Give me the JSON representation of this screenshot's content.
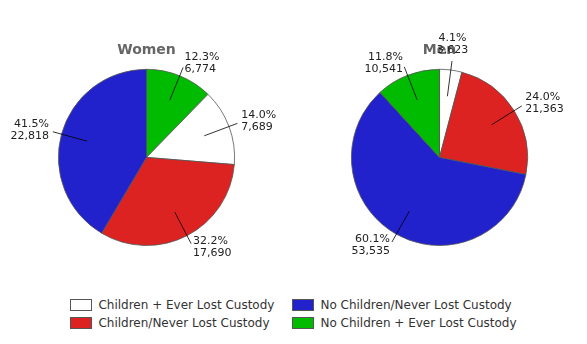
{
  "chart_data": [
    {
      "type": "pie",
      "title": "Women",
      "categories": [
        "No Children + Ever Lost Custody",
        "Children + Ever Lost Custody",
        "Children/Never Lost Custody",
        "No Children/Never Lost Custody"
      ],
      "values": [
        12.3,
        14.0,
        32.2,
        41.5
      ],
      "value_labels": [
        "12.3%\n6,774",
        "14.0%\n7,689",
        "32.2%\n17,690",
        "41.5%\n22,818"
      ],
      "colors": [
        "#00bb00",
        "#ffffff",
        "#dd2222",
        "#2222cc"
      ],
      "data_labels": true
    },
    {
      "type": "pie",
      "title": "Men",
      "categories": [
        "Children + Ever Lost Custody",
        "Children/Never Lost Custody",
        "No Children/Never Lost Custody",
        "No Children + Ever Lost Custody"
      ],
      "values": [
        4.1,
        24.0,
        60.1,
        11.8
      ],
      "value_labels": [
        "4.1%\n3,623",
        "24.0%\n21,363",
        "60.1%\n53,535",
        "11.8%\n10,541"
      ],
      "colors": [
        "#ffffff",
        "#dd2222",
        "#2222cc",
        "#00bb00"
      ],
      "data_labels": true,
      "legend": "bottom"
    }
  ]
}
